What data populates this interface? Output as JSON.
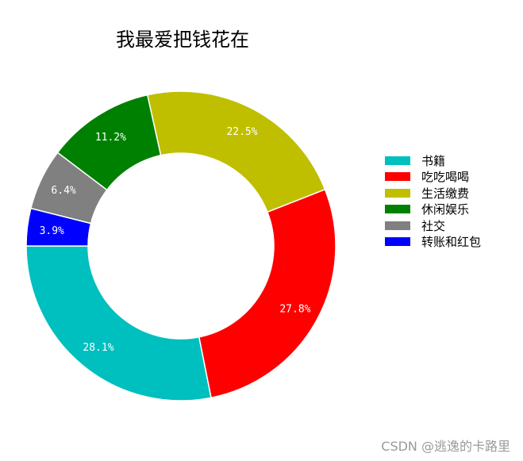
{
  "chart_data": {
    "type": "pie",
    "subtype": "donut",
    "title": "我最爱把钱花在",
    "categories": [
      "书籍",
      "吃吃喝喝",
      "生活缴费",
      "休闲娱乐",
      "社交",
      "转账和红包"
    ],
    "values": [
      28.1,
      27.8,
      22.5,
      11.2,
      6.4,
      3.9
    ],
    "labels": [
      "28.1%",
      "27.8%",
      "22.5%",
      "11.2%",
      "6.4%",
      "3.9%"
    ],
    "colors": [
      "#00bfbf",
      "#ff0000",
      "#bfbf00",
      "#008000",
      "#808080",
      "#0000ff"
    ],
    "start_angle": 180,
    "direction": "counterclockwise",
    "legend_position": "right"
  },
  "legend": {
    "items": [
      {
        "label": "书籍",
        "color": "#00bfbf"
      },
      {
        "label": "吃吃喝喝",
        "color": "#ff0000"
      },
      {
        "label": "生活缴费",
        "color": "#bfbf00"
      },
      {
        "label": "休闲娱乐",
        "color": "#008000"
      },
      {
        "label": "社交",
        "color": "#808080"
      },
      {
        "label": "转账和红包",
        "color": "#0000ff"
      }
    ]
  },
  "watermark": "CSDN @逃逸的卡路里"
}
